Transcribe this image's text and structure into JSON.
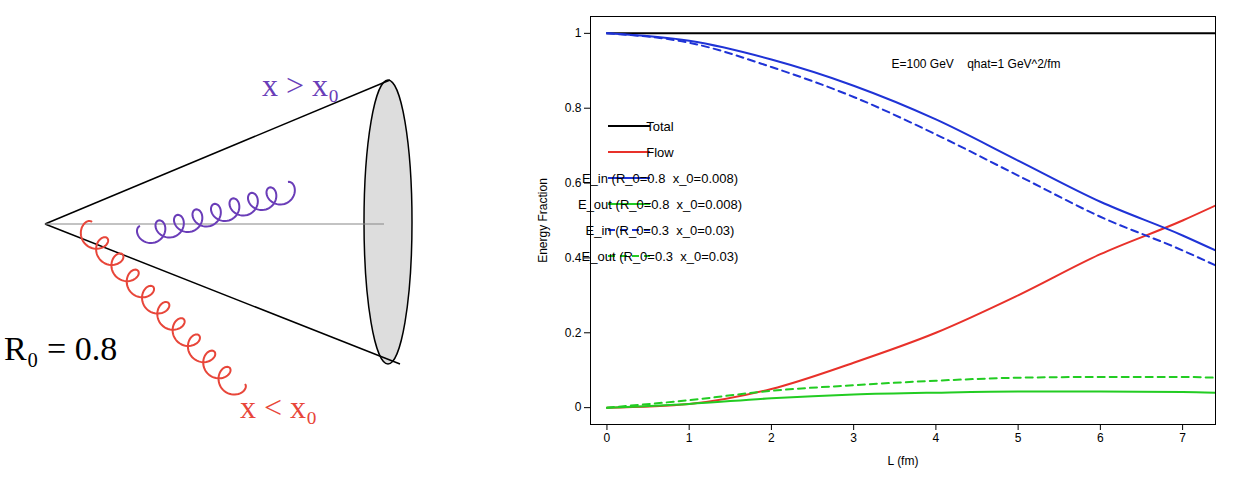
{
  "diagram": {
    "labels": {
      "inside": "x > x₀",
      "outside": "x < x₀",
      "radius": "R₀ = 0.8"
    }
  },
  "chart_data": {
    "type": "line",
    "annotation": "E=100 GeV    qhat=1 GeV^2/fm",
    "x_label": "L (fm)",
    "y_label": "Energy Fraction",
    "x": [
      0,
      1,
      2,
      3,
      4,
      5,
      6,
      7,
      7.4
    ],
    "series": [
      {
        "name": "Total",
        "color": "#000000",
        "line_style": "solid",
        "values": [
          1,
          1,
          1,
          1,
          1,
          1,
          1,
          1,
          1
        ]
      },
      {
        "name": "Flow",
        "color": "#e8312a",
        "line_style": "solid",
        "values": [
          0,
          0.01,
          0.05,
          0.12,
          0.2,
          0.3,
          0.41,
          0.5,
          0.54
        ]
      },
      {
        "name": "E_in (R_0=0.8  x_0=0.008)",
        "color": "#1f33d6",
        "line_style": "solid",
        "values": [
          1,
          0.98,
          0.93,
          0.86,
          0.77,
          0.66,
          0.55,
          0.46,
          0.42
        ]
      },
      {
        "name": "E_out (R_0=0.8  x_0=0.008)",
        "color": "#22cc22",
        "line_style": "solid",
        "values": [
          0,
          0.01,
          0.025,
          0.035,
          0.04,
          0.043,
          0.043,
          0.042,
          0.04
        ]
      },
      {
        "name": "E_in (R_0=0.3  x_0=0.03)",
        "color": "#1f33d6",
        "line_style": "dashed",
        "values": [
          1,
          0.975,
          0.91,
          0.83,
          0.73,
          0.62,
          0.51,
          0.42,
          0.38
        ]
      },
      {
        "name": "E_out (R_0=0.3  x_0=0.03)",
        "color": "#22cc22",
        "line_style": "dashed",
        "values": [
          0,
          0.02,
          0.045,
          0.06,
          0.072,
          0.08,
          0.082,
          0.082,
          0.08
        ]
      }
    ],
    "xlim": [
      -0.2,
      7.4
    ],
    "ylim": [
      -0.045,
      1.045
    ],
    "xticks": [
      0,
      1,
      2,
      3,
      4,
      5,
      6,
      7
    ],
    "yticks": [
      0,
      0.2,
      0.4,
      0.6,
      0.8,
      1
    ],
    "grid": false,
    "legend": "upper left"
  }
}
